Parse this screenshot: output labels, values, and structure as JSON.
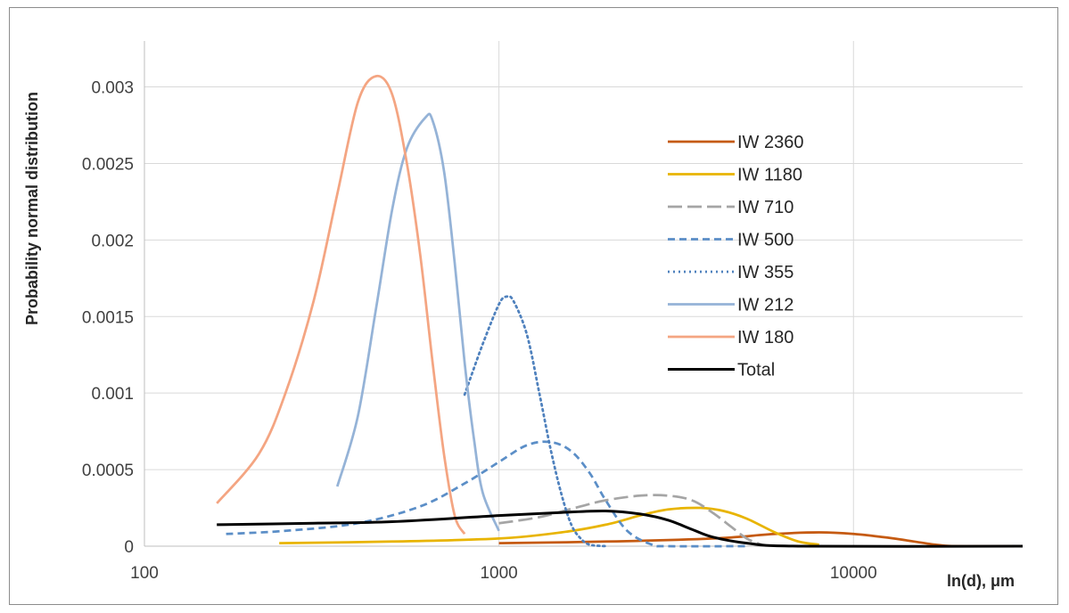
{
  "chart_data": {
    "type": "line",
    "title": "",
    "xlabel": "ln(d), μm",
    "ylabel": "Probability normal distribution",
    "x_scale": "log",
    "xlim": [
      100,
      30000
    ],
    "ylim": [
      0,
      0.0033
    ],
    "x_ticks": [
      100,
      1000,
      10000
    ],
    "x_tick_labels": [
      "100",
      "1000",
      "10000"
    ],
    "y_ticks": [
      0,
      0.0005,
      0.001,
      0.0015,
      0.002,
      0.0025,
      0.003
    ],
    "y_tick_labels": [
      "0",
      "0.0005",
      "0.001",
      "0.0015",
      "0.002",
      "0.0025",
      "0.003"
    ],
    "grid": {
      "x_major": true,
      "y_major": true
    },
    "legend_position": "right",
    "series": [
      {
        "name": "IW 2360",
        "color": "#c55a11",
        "dash": "solid",
        "points": [
          [
            1000,
            2e-05
          ],
          [
            2000,
            3e-05
          ],
          [
            4000,
            5e-05
          ],
          [
            6000,
            8e-05
          ],
          [
            8000,
            9e-05
          ],
          [
            10000,
            8e-05
          ],
          [
            13000,
            5e-05
          ],
          [
            17000,
            1e-05
          ],
          [
            20000,
            0
          ],
          [
            30000,
            0
          ]
        ]
      },
      {
        "name": "IW 1180",
        "color": "#e8b400",
        "dash": "solid",
        "points": [
          [
            240,
            2e-05
          ],
          [
            500,
            3e-05
          ],
          [
            1000,
            5e-05
          ],
          [
            1500,
            9e-05
          ],
          [
            2000,
            0.00014
          ],
          [
            2500,
            0.0002
          ],
          [
            3000,
            0.00024
          ],
          [
            3700,
            0.00025
          ],
          [
            4300,
            0.00023
          ],
          [
            5000,
            0.00018
          ],
          [
            6000,
            9e-05
          ],
          [
            7000,
            3e-05
          ],
          [
            8000,
            1e-05
          ]
        ]
      },
      {
        "name": "IW 710",
        "color": "#a5a5a5",
        "dash": "long",
        "points": [
          [
            1000,
            0.00015
          ],
          [
            1300,
            0.00019
          ],
          [
            1700,
            0.00026
          ],
          [
            2000,
            0.0003
          ],
          [
            2500,
            0.00033
          ],
          [
            3000,
            0.00033
          ],
          [
            3500,
            0.0003
          ],
          [
            4000,
            0.00022
          ],
          [
            4500,
            0.00013
          ],
          [
            5000,
            5e-05
          ],
          [
            5500,
            1e-05
          ]
        ]
      },
      {
        "name": "IW 500",
        "color": "#5b8ec7",
        "dash": "short",
        "points": [
          [
            170,
            8e-05
          ],
          [
            250,
            0.0001
          ],
          [
            400,
            0.00015
          ],
          [
            600,
            0.00026
          ],
          [
            800,
            0.00041
          ],
          [
            1000,
            0.00055
          ],
          [
            1200,
            0.00066
          ],
          [
            1400,
            0.00068
          ],
          [
            1600,
            0.00062
          ],
          [
            1800,
            0.00048
          ],
          [
            2000,
            0.0003
          ],
          [
            2300,
            0.0001
          ],
          [
            2700,
            1e-05
          ],
          [
            3000,
            0
          ],
          [
            5000,
            0
          ]
        ]
      },
      {
        "name": "IW 355",
        "color": "#4f81bd",
        "dash": "dot",
        "points": [
          [
            800,
            0.00099
          ],
          [
            900,
            0.00132
          ],
          [
            1000,
            0.00158
          ],
          [
            1050,
            0.00163
          ],
          [
            1100,
            0.0016
          ],
          [
            1200,
            0.00138
          ],
          [
            1300,
            0.001
          ],
          [
            1400,
            0.00063
          ],
          [
            1500,
            0.00034
          ],
          [
            1600,
            0.00014
          ],
          [
            1700,
            5e-05
          ],
          [
            1800,
            1e-05
          ],
          [
            2000,
            0
          ]
        ]
      },
      {
        "name": "IW 212",
        "color": "#95b3d7",
        "dash": "solid",
        "points": [
          [
            350,
            0.00039
          ],
          [
            400,
            0.00085
          ],
          [
            450,
            0.00155
          ],
          [
            500,
            0.0022
          ],
          [
            550,
            0.0026
          ],
          [
            620,
            0.0028
          ],
          [
            650,
            0.00278
          ],
          [
            700,
            0.00245
          ],
          [
            750,
            0.00185
          ],
          [
            800,
            0.0012
          ],
          [
            850,
            0.0007
          ],
          [
            900,
            0.00035
          ],
          [
            1000,
            0.0001
          ]
        ]
      },
      {
        "name": "IW 180",
        "color": "#f4a582",
        "dash": "solid",
        "points": [
          [
            160,
            0.00028
          ],
          [
            210,
            0.0006
          ],
          [
            250,
            0.001
          ],
          [
            300,
            0.0016
          ],
          [
            350,
            0.0023
          ],
          [
            400,
            0.0029
          ],
          [
            450,
            0.00307
          ],
          [
            500,
            0.00295
          ],
          [
            550,
            0.0025
          ],
          [
            600,
            0.0019
          ],
          [
            650,
            0.0012
          ],
          [
            700,
            0.0006
          ],
          [
            750,
            0.0002
          ],
          [
            800,
            8e-05
          ]
        ]
      },
      {
        "name": "Total",
        "color": "#000000",
        "dash": "solid",
        "points": [
          [
            160,
            0.00014
          ],
          [
            300,
            0.00015
          ],
          [
            500,
            0.00016
          ],
          [
            1000,
            0.0002
          ],
          [
            1500,
            0.00022
          ],
          [
            2000,
            0.00023
          ],
          [
            2500,
            0.00021
          ],
          [
            3000,
            0.00017
          ],
          [
            3500,
            0.00011
          ],
          [
            4000,
            6e-05
          ],
          [
            5000,
            2e-05
          ],
          [
            7000,
            0
          ],
          [
            30000,
            0
          ]
        ]
      }
    ]
  }
}
